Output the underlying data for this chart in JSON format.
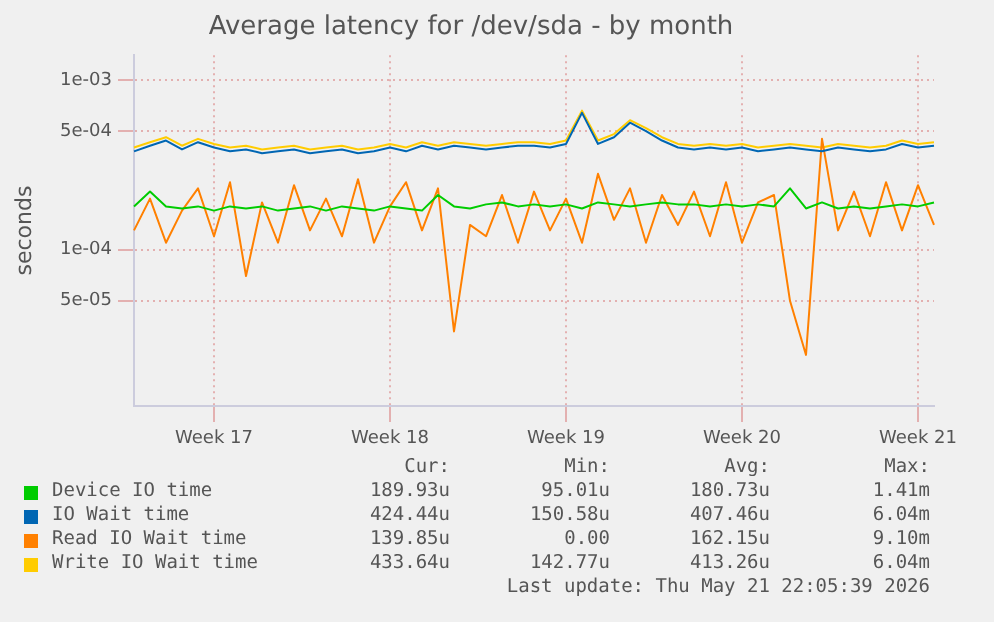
{
  "chart_data": {
    "type": "line",
    "title": "Average latency for /dev/sda - by month",
    "ylabel": "seconds",
    "categories": [
      null,
      null,
      null,
      null,
      null,
      "Week 17",
      null,
      null,
      null,
      null,
      null,
      null,
      null,
      null,
      null,
      null,
      "Week 18",
      null,
      null,
      null,
      null,
      null,
      null,
      null,
      null,
      null,
      null,
      "Week 19",
      null,
      null,
      null,
      null,
      null,
      null,
      null,
      null,
      null,
      null,
      "Week 20",
      null,
      null,
      null,
      null,
      null,
      null,
      null,
      null,
      null,
      null,
      "Week 21",
      null
    ],
    "series": [
      {
        "name": "Device IO time",
        "color": "#00cc00",
        "values": [
          0.00018,
          0.00022,
          0.00018,
          0.000175,
          0.00018,
          0.00017,
          0.00018,
          0.000175,
          0.00018,
          0.00017,
          0.000175,
          0.00018,
          0.00017,
          0.00018,
          0.000175,
          0.00017,
          0.00018,
          0.000175,
          0.00017,
          0.00021,
          0.00018,
          0.000175,
          0.000185,
          0.00019,
          0.00018,
          0.000185,
          0.00018,
          0.000185,
          0.000175,
          0.00019,
          0.000185,
          0.00018,
          0.000185,
          0.00019,
          0.000185,
          0.000185,
          0.00018,
          0.000185,
          0.00018,
          0.000185,
          0.00018,
          0.00023,
          0.000175,
          0.00019,
          0.000175,
          0.00018,
          0.000175,
          0.00018,
          0.000185,
          0.00018,
          0.00019
        ]
      },
      {
        "name": "IO Wait time",
        "color": "#0066b3",
        "values": [
          0.00038,
          0.00041,
          0.00044,
          0.00039,
          0.00043,
          0.0004,
          0.00038,
          0.00039,
          0.00037,
          0.00038,
          0.00039,
          0.00037,
          0.00038,
          0.00039,
          0.00037,
          0.00038,
          0.0004,
          0.00038,
          0.00041,
          0.00039,
          0.00041,
          0.0004,
          0.00039,
          0.0004,
          0.00041,
          0.00041,
          0.0004,
          0.00042,
          0.00064,
          0.00042,
          0.00046,
          0.00056,
          0.0005,
          0.00044,
          0.0004,
          0.00039,
          0.0004,
          0.00039,
          0.0004,
          0.00038,
          0.00039,
          0.0004,
          0.00039,
          0.00038,
          0.0004,
          0.00039,
          0.00038,
          0.00039,
          0.00042,
          0.0004,
          0.00041
        ]
      },
      {
        "name": "Read IO Wait time",
        "color": "#ff8000",
        "values": [
          0.00013,
          0.0002,
          0.00011,
          0.00017,
          0.00023,
          0.00012,
          0.00025,
          7e-05,
          0.00019,
          0.00011,
          0.00024,
          0.00013,
          0.0002,
          0.00012,
          0.00026,
          0.00011,
          0.00018,
          0.00025,
          0.00013,
          0.00023,
          3.3e-05,
          0.00014,
          0.00012,
          0.00021,
          0.00011,
          0.00022,
          0.00013,
          0.0002,
          0.00011,
          0.00028,
          0.00015,
          0.00023,
          0.00011,
          0.00021,
          0.00014,
          0.00022,
          0.00012,
          0.00025,
          0.00011,
          0.00019,
          0.00021,
          5e-05,
          2.4e-05,
          0.00045,
          0.00013,
          0.00022,
          0.00012,
          0.00025,
          0.00013,
          0.00024,
          0.00014
        ]
      },
      {
        "name": "Write IO Wait time",
        "color": "#ffcc00",
        "values": [
          0.0004,
          0.00043,
          0.00046,
          0.00041,
          0.00045,
          0.00042,
          0.0004,
          0.00041,
          0.00039,
          0.0004,
          0.00041,
          0.00039,
          0.0004,
          0.00041,
          0.00039,
          0.0004,
          0.00042,
          0.0004,
          0.00043,
          0.00041,
          0.00043,
          0.00042,
          0.00041,
          0.00042,
          0.00043,
          0.00043,
          0.00042,
          0.00044,
          0.00066,
          0.00044,
          0.00048,
          0.00058,
          0.00052,
          0.00046,
          0.00042,
          0.00041,
          0.00042,
          0.00041,
          0.00042,
          0.0004,
          0.00041,
          0.00042,
          0.00041,
          0.0004,
          0.00042,
          0.00041,
          0.0004,
          0.00041,
          0.00044,
          0.00042,
          0.00043
        ]
      }
    ],
    "log": "y",
    "ylim": [
      1.2e-05,
      0.0014
    ],
    "yticks": [
      {
        "value": 0.001,
        "label": "1e-03"
      },
      {
        "value": 0.0005,
        "label": "5e-04"
      },
      {
        "value": 0.0001,
        "label": "1e-04"
      },
      {
        "value": 5e-05,
        "label": "5e-05"
      }
    ],
    "grid": true,
    "legend": "bottom",
    "marker": "none",
    "annotations": [
      "Cur:",
      "Min:",
      "Avg:",
      "Max:",
      "189.93u",
      "95.01u",
      "180.73u",
      "1.41m",
      "424.44u",
      "150.58u",
      "407.46u",
      "6.04m",
      "139.85u",
      "0.00",
      "162.15u",
      "9.10m",
      "433.64u",
      "142.77u",
      "413.26u",
      "6.04m",
      "Last update: Thu May 21 22:05:39 2026"
    ]
  }
}
